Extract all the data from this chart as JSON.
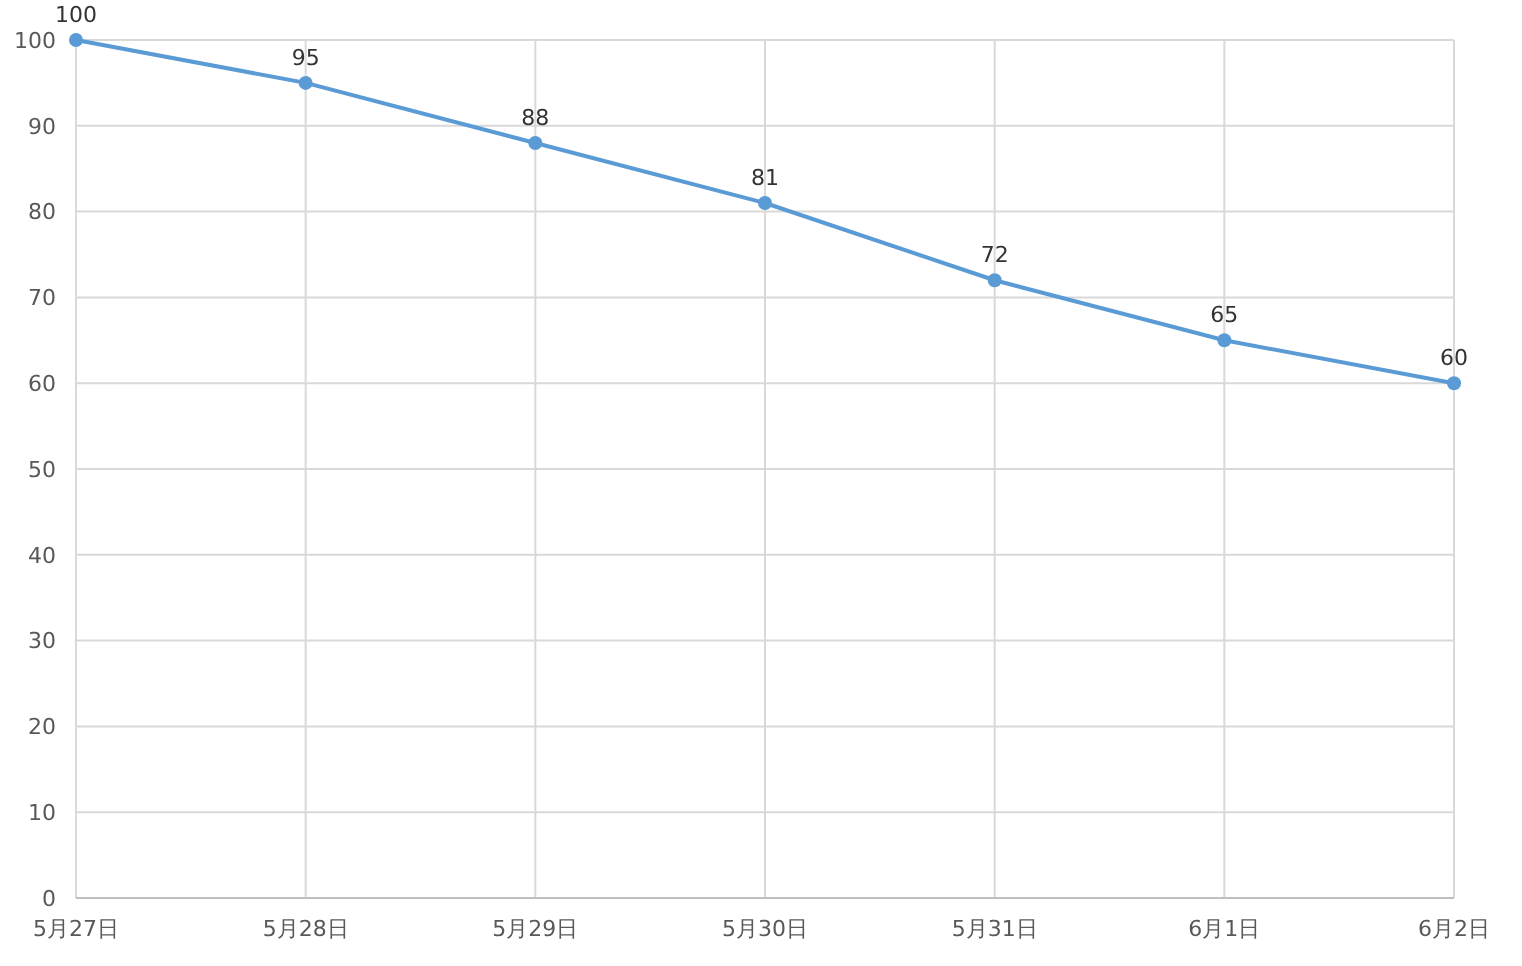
{
  "chart_data": {
    "type": "line",
    "categories": [
      "5月27日",
      "5月28日",
      "5月29日",
      "5月30日",
      "5月31日",
      "6月1日",
      "6月2日"
    ],
    "series": [
      {
        "color": "#5b9bd5",
        "values": [
          100,
          95,
          88,
          81,
          72,
          65,
          60
        ]
      }
    ],
    "ylim": [
      0,
      100
    ],
    "yticks": [
      0,
      10,
      20,
      30,
      40,
      50,
      60,
      70,
      80,
      90,
      100
    ],
    "grid": true,
    "marker": "circle",
    "line_style": "solid",
    "data_labels": true
  }
}
